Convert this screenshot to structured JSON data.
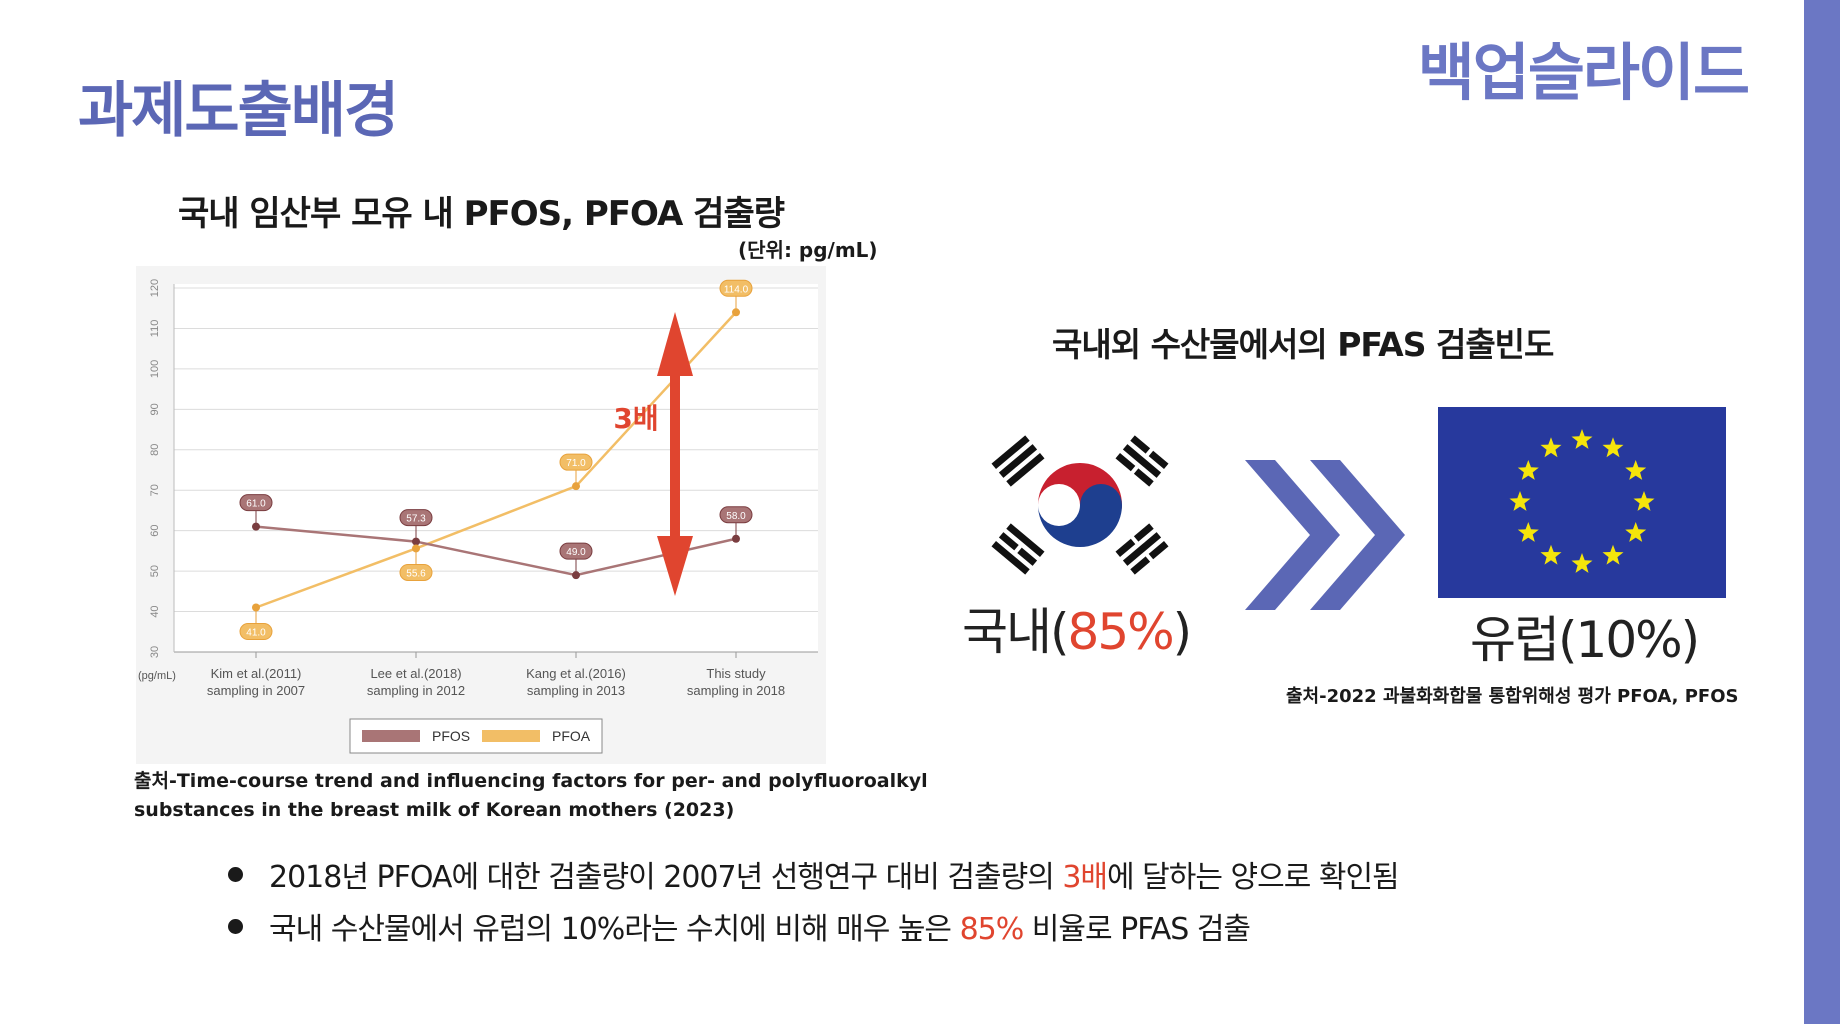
{
  "header": {
    "title": "과제도출배경",
    "tag": "백업슬라이드"
  },
  "left": {
    "title": "국내 임산부 모유 내 PFOS, PFOA 검출량",
    "unit": "(단위: pg/mL)",
    "source_line1": "출처-Time-course trend and influencing factors for per- and polyfluoroalkyl",
    "source_line2": "substances in the breast milk of Korean mothers (2023)",
    "annotation": "3배"
  },
  "chart_data": {
    "type": "line",
    "categories": [
      [
        "Kim et al.(2011)",
        "sampling in 2007"
      ],
      [
        "Lee et al.(2018)",
        "sampling in 2012"
      ],
      [
        "Kang et al.(2016)",
        "sampling in 2013"
      ],
      [
        "This study",
        "sampling in 2018"
      ]
    ],
    "y_unit_label": "(pg/mL)",
    "ylim": [
      30,
      120
    ],
    "yticks": [
      30,
      40,
      50,
      60,
      70,
      80,
      90,
      100,
      110,
      120
    ],
    "grid": true,
    "legend_position": "bottom",
    "series": [
      {
        "name": "PFOS",
        "values": [
          61.0,
          57.3,
          49.0,
          58.0
        ],
        "labels": [
          "61.0",
          "57.3",
          "49.0",
          "58.0"
        ],
        "color": "#a97576"
      },
      {
        "name": "PFOA",
        "values": [
          41.0,
          55.6,
          71.0,
          114.0
        ],
        "labels": [
          "41.0",
          "55.6",
          "71.0",
          "114.0"
        ],
        "color": "#f2be66"
      }
    ]
  },
  "right": {
    "title": "국내외 수산물에서의 PFAS 검출빈도",
    "korea_prefix": "국내(",
    "korea_value": "85%",
    "korea_suffix": ")",
    "europe_label": "유럽(10%)",
    "source": "출처-2022 과불화화합물 통합위해성 평가 PFOA, PFOS"
  },
  "bullets": [
    {
      "before": "2018년  PFOA에 대한 검출량이 2007년 선행연구 대비 검출량의 ",
      "highlight": "3배",
      "after": "에 달하는 양으로 확인됨"
    },
    {
      "before": "국내 수산물에서 유럽의 10%라는 수치에 비해 매우 높은 ",
      "highlight": "85%",
      "after": " 비율로 PFAS 검출"
    }
  ],
  "colors": {
    "accent": "#6b77c4",
    "title": "#5b67b5",
    "highlight": "#e0452f",
    "arrow": "#5b67b5",
    "eu_blue": "#27399d",
    "eu_star": "#f5e50b",
    "korea_red": "#c8202f",
    "korea_blue": "#1e3f8f"
  },
  "icons": [
    "korean-flag-icon",
    "chevron-right-icon",
    "eu-flag-icon",
    "double-arrow-icon"
  ]
}
